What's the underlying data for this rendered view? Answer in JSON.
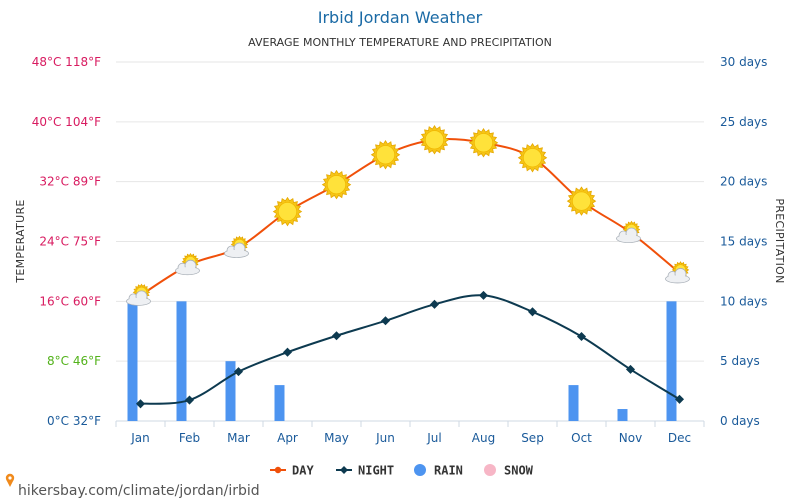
{
  "header": {
    "title": "Irbid Jordan Weather",
    "subtitle": "AVERAGE MONTHLY TEMPERATURE AND PRECIPITATION"
  },
  "axes": {
    "left_title": "TEMPERATURE",
    "right_title": "PRECIPITATION",
    "left_ticks": [
      {
        "c": 0,
        "label": "0°C 32°F",
        "color": "#1a5a9a"
      },
      {
        "c": 8,
        "label": "8°C 46°F",
        "color": "#52b21a"
      },
      {
        "c": 16,
        "label": "16°C 60°F",
        "color": "#d81b60"
      },
      {
        "c": 24,
        "label": "24°C 75°F",
        "color": "#d81b60"
      },
      {
        "c": 32,
        "label": "32°C 89°F",
        "color": "#d81b60"
      },
      {
        "c": 40,
        "label": "40°C 104°F",
        "color": "#d81b60"
      },
      {
        "c": 48,
        "label": "48°C 118°F",
        "color": "#d81b60"
      }
    ],
    "right_ticks": [
      {
        "d": 0,
        "label": "0 days"
      },
      {
        "d": 5,
        "label": "5 days"
      },
      {
        "d": 10,
        "label": "10 days"
      },
      {
        "d": 15,
        "label": "15 days"
      },
      {
        "d": 20,
        "label": "20 days"
      },
      {
        "d": 25,
        "label": "25 days"
      },
      {
        "d": 30,
        "label": "30 days"
      }
    ],
    "right_color": "#1a5a9a"
  },
  "legend": {
    "items": [
      {
        "label": "DAY",
        "color": "#f0500a",
        "kind": "line"
      },
      {
        "label": "NIGHT",
        "color": "#0d3a50",
        "kind": "line"
      },
      {
        "label": "RAIN",
        "color": "#4d94f0",
        "kind": "dot"
      },
      {
        "label": "SNOW",
        "color": "#f7b6c6",
        "kind": "dot"
      }
    ]
  },
  "footer": {
    "source": "hikersbay.com/climate/jordan/irbid"
  },
  "chart_data": {
    "type": "line",
    "categories": [
      "Jan",
      "Feb",
      "Mar",
      "Apr",
      "May",
      "Jun",
      "Jul",
      "Aug",
      "Sep",
      "Oct",
      "Nov",
      "Dec"
    ],
    "series": [
      {
        "name": "DAY",
        "axis": "temperature",
        "unit": "°C",
        "color": "#f0500a",
        "values": [
          16.8,
          20.9,
          23.2,
          28.0,
          31.6,
          35.6,
          37.6,
          37.2,
          35.2,
          29.4,
          25.2,
          19.8
        ]
      },
      {
        "name": "NIGHT",
        "axis": "temperature",
        "unit": "°C",
        "color": "#0d3a50",
        "values": [
          2.3,
          2.8,
          6.6,
          9.2,
          11.4,
          13.4,
          15.6,
          16.8,
          14.6,
          11.3,
          6.9,
          2.9
        ]
      },
      {
        "name": "RAIN",
        "axis": "precipitation",
        "unit": "days",
        "type": "bar",
        "color": "#4d94f0",
        "values": [
          10,
          10,
          5,
          3,
          0,
          0,
          0,
          0,
          0,
          3,
          1,
          10
        ]
      },
      {
        "name": "SNOW",
        "axis": "precipitation",
        "unit": "days",
        "type": "bar",
        "color": "#f7b6c6",
        "values": [
          0,
          0,
          0,
          0,
          0,
          0,
          0,
          0,
          0,
          0,
          0,
          0
        ]
      }
    ],
    "weather_icons": [
      "partly-cloudy-icon",
      "partly-cloudy-icon",
      "partly-cloudy-icon",
      "sun-icon",
      "sun-icon",
      "sun-icon",
      "sun-icon",
      "sun-icon",
      "sun-icon",
      "sun-icon",
      "partly-cloudy-icon",
      "partly-cloudy-icon"
    ],
    "ylim_left": [
      0,
      48
    ],
    "ylim_right": [
      0,
      30
    ],
    "grid": true,
    "legend_position": "bottom-center"
  }
}
